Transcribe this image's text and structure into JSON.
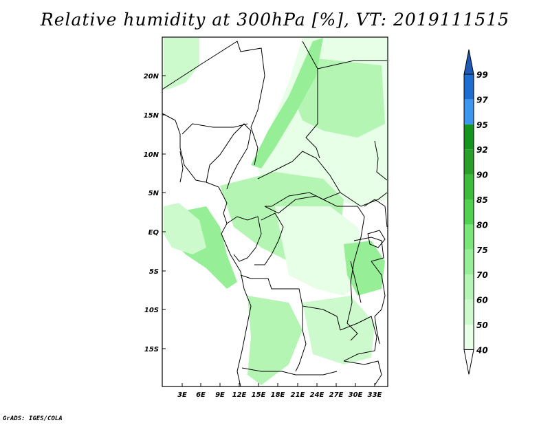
{
  "title": "Relative humidity at 300hPa [%], VT: 2019111515",
  "credit": "GrADS: IGES/COLA",
  "map": {
    "lat_labels": [
      "20N",
      "15N",
      "10N",
      "5N",
      "EQ",
      "5S",
      "10S",
      "15S"
    ],
    "lon_labels": [
      "3E",
      "6E",
      "9E",
      "12E",
      "15E",
      "18E",
      "21E",
      "24E",
      "27E",
      "30E",
      "33E"
    ],
    "field_variable": "Relative humidity",
    "units": "%"
  },
  "colorbar": {
    "levels": [
      "40",
      "50",
      "60",
      "70",
      "75",
      "80",
      "85",
      "90",
      "92",
      "95",
      "97",
      "99"
    ],
    "colors": {
      "white": "#ffffff",
      "c40": "#e6ffe6",
      "c50": "#ccfacc",
      "c60": "#b4f5b4",
      "c70": "#96ee96",
      "c75": "#78e678",
      "c80": "#50d250",
      "c85": "#3cbe3c",
      "c90": "#28a028",
      "c92": "#14961e",
      "c97": "#3c96f0",
      "c99": "#1e6ed2",
      "top": "#1e5ab4",
      "border": "#000000"
    }
  }
}
